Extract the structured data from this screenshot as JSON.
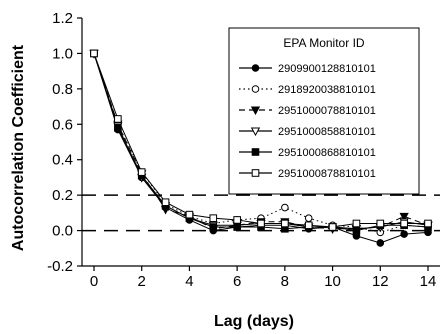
{
  "chart_data": {
    "type": "line",
    "xlabel": "Lag (days)",
    "ylabel": "Autocorrelation Coefficient",
    "xlim": [
      -0.5,
      14.4
    ],
    "ylim": [
      -0.2,
      1.2
    ],
    "xticks": [
      0,
      2,
      4,
      6,
      8,
      10,
      12,
      14
    ],
    "yticks": [
      -0.2,
      0.0,
      0.2,
      0.4,
      0.6,
      0.8,
      1.0,
      1.2
    ],
    "ytick_labels": [
      "-0.2",
      "0.0",
      "0.2",
      "0.4",
      "0.6",
      "0.8",
      "1.0",
      "1.2"
    ],
    "reference_lines": [
      0.2,
      0.0
    ],
    "legend": {
      "title": "EPA Monitor ID",
      "position": "top-right"
    },
    "x": [
      0,
      1,
      2,
      3,
      4,
      5,
      6,
      7,
      8,
      9,
      10,
      11,
      12,
      13,
      14
    ],
    "series": [
      {
        "name": "2909900128810101",
        "marker": "filled-circle",
        "line": "solid",
        "values": [
          1.0,
          0.57,
          0.3,
          0.13,
          0.06,
          0.0,
          0.02,
          0.03,
          0.03,
          0.01,
          0.02,
          -0.03,
          -0.07,
          -0.02,
          -0.01
        ]
      },
      {
        "name": "2918920038810101",
        "marker": "open-circle",
        "line": "dotted",
        "values": [
          1.0,
          0.6,
          0.33,
          0.15,
          0.08,
          0.04,
          0.06,
          0.07,
          0.13,
          0.07,
          0.03,
          0.02,
          -0.01,
          0.03,
          0.02
        ]
      },
      {
        "name": "2951000078810101",
        "marker": "filled-triangle-down",
        "line": "dashed",
        "values": [
          1.0,
          0.6,
          0.32,
          0.12,
          0.08,
          0.01,
          0.03,
          0.05,
          0.05,
          0.02,
          0.01,
          0.01,
          0.02,
          0.08,
          0.03
        ]
      },
      {
        "name": "2951000858810101",
        "marker": "open-triangle-down",
        "line": "solid",
        "values": [
          1.0,
          0.59,
          0.3,
          0.14,
          0.07,
          0.03,
          0.03,
          0.04,
          0.04,
          0.02,
          0.02,
          0.01,
          0.02,
          0.05,
          0.03
        ]
      },
      {
        "name": "2951000868810101",
        "marker": "filled-square",
        "line": "solid",
        "values": [
          1.0,
          0.58,
          0.31,
          0.14,
          0.07,
          0.02,
          0.02,
          0.02,
          0.01,
          0.02,
          0.02,
          0.0,
          0.03,
          0.03,
          0.02
        ]
      },
      {
        "name": "2951000878810101",
        "marker": "open-square",
        "line": "solid",
        "values": [
          1.0,
          0.63,
          0.33,
          0.16,
          0.09,
          0.07,
          0.06,
          0.04,
          0.04,
          0.03,
          0.02,
          0.04,
          0.04,
          0.04,
          0.04
        ]
      }
    ]
  }
}
